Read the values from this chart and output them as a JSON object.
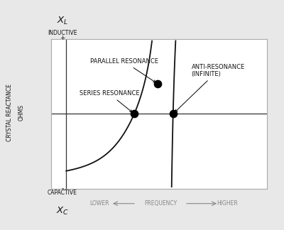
{
  "background_color": "#e8e8e8",
  "plot_bg_color": "#ffffff",
  "border_color": "#aaaaaa",
  "curve_color": "#111111",
  "text_color": "#111111",
  "freq_text_color": "#888888",
  "xl_label": "$X_L$",
  "xc_label": "$X_C$",
  "inductive_label": "INDUCTIVE",
  "capacitive_label": "CAPACTIVE",
  "plus_label": "+",
  "minus_label": "-",
  "ylabel_line1": "CRYSTAL REACTANCE",
  "ylabel_line2": "OHMS",
  "xlabel_lower": "LOWER",
  "xlabel_freq": "FREQUENCY",
  "xlabel_higher": "HIGHER",
  "parallel_resonance_label": "PARALLEL RESONANCE",
  "series_resonance_label": "SERIES RESONANCE",
  "anti_resonance_label": "ANTI-RESONANCE\n(INFINITE)",
  "series_xf": 0.385,
  "parallel_xf": 0.495,
  "parallel_yf": 0.4,
  "anti_xf": 0.565,
  "asymptote_xf": 0.535,
  "dot_size": 55,
  "dot_color": "#000000",
  "line_width": 1.3,
  "font_size_labels": 6.0,
  "font_size_xl": 9.5,
  "font_size_ylabel": 5.5
}
